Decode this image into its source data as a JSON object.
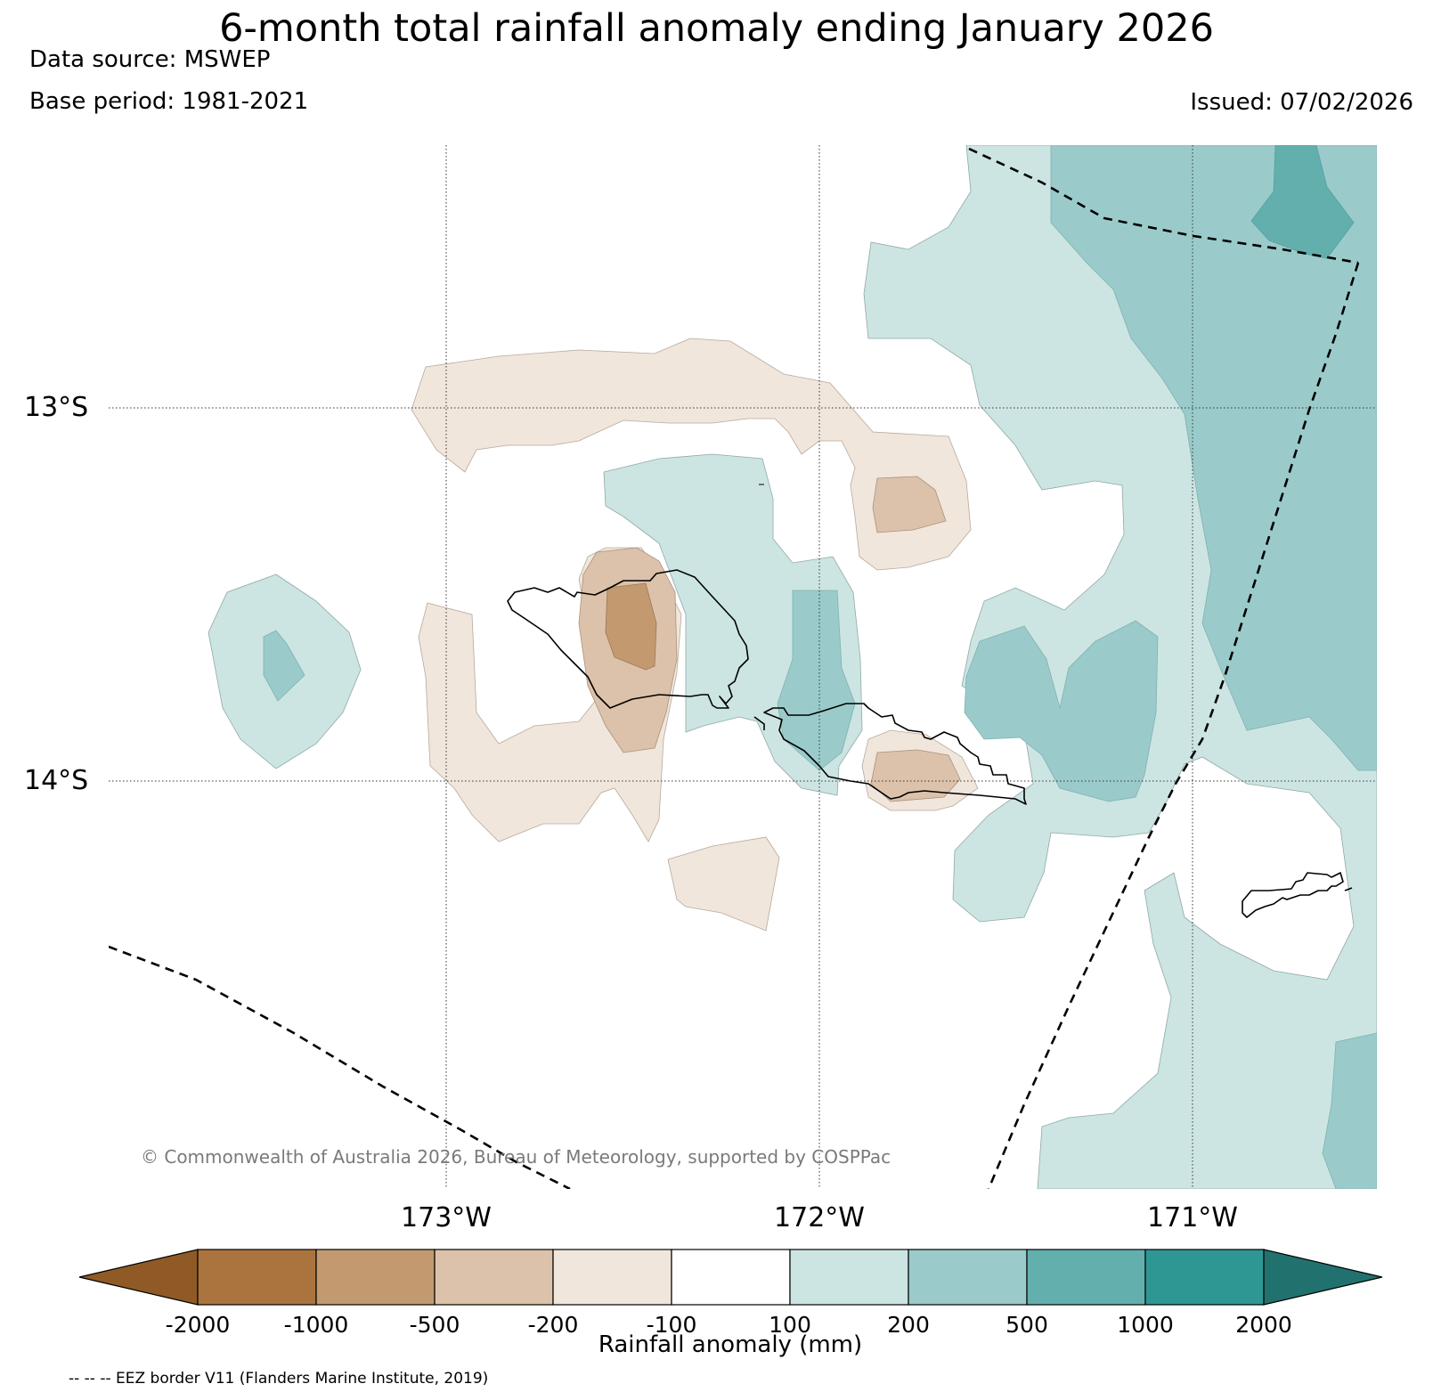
{
  "header": {
    "title": "6-month total rainfall anomaly ending January 2026",
    "data_source": "Data source: MSWEP",
    "base_period": "Base period: 1981-2021",
    "issued": "Issued: 07/02/2026"
  },
  "map": {
    "lat_labels": [
      "13°S",
      "14°S"
    ],
    "lon_labels": [
      "173°W",
      "172°W",
      "171°W"
    ],
    "copyright": "© Commonwealth of Australia 2026, Bureau of Meteorology, supported by COSPPac"
  },
  "colorbar": {
    "title": "Rainfall anomaly (mm)",
    "ticks": [
      "-2000",
      "-1000",
      "-500",
      "-200",
      "-100",
      "100",
      "200",
      "500",
      "1000",
      "2000"
    ],
    "colors": [
      "#8f5a26",
      "#ab743e",
      "#c39a70",
      "#dcc2aa",
      "#f1e6dc",
      "#ffffff",
      "#cce5e3",
      "#9acbca",
      "#63afae",
      "#2f9793",
      "#21726f"
    ]
  },
  "footer": {
    "eez_legend": "-- -- -- EEZ border V11 (Flanders Marine Institute, 2019)"
  }
}
